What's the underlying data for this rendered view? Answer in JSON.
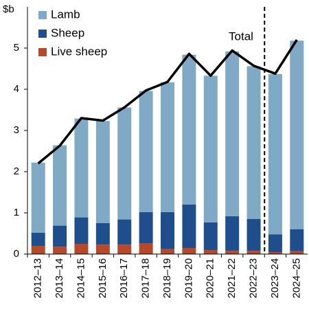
{
  "chart_data": {
    "type": "bar",
    "stacked": true,
    "y_label": "$b",
    "categories": [
      "2012–13",
      "2013–14",
      "2014–15",
      "2015–16",
      "2016–17",
      "2017–18",
      "2018–19",
      "2019–20",
      "2020–21",
      "2021–22",
      "2022–23",
      "2023–24",
      "2024–25"
    ],
    "series": [
      {
        "name": "Live sheep",
        "color": "#b5492a",
        "values": [
          0.2,
          0.18,
          0.25,
          0.23,
          0.23,
          0.26,
          0.12,
          0.15,
          0.1,
          0.08,
          0.08,
          0.05,
          0.07
        ]
      },
      {
        "name": "Sheep",
        "color": "#1f4e8c",
        "values": [
          0.32,
          0.51,
          0.64,
          0.52,
          0.61,
          0.76,
          0.9,
          1.05,
          0.67,
          0.84,
          0.77,
          0.43,
          0.53
        ]
      },
      {
        "name": "Lamb",
        "color": "#7fa9c4",
        "values": [
          1.7,
          1.95,
          2.4,
          2.48,
          2.72,
          2.94,
          3.15,
          3.64,
          3.56,
          4.0,
          3.71,
          3.89,
          4.58
        ]
      }
    ],
    "line_series": {
      "name": "Total",
      "color": "#000000",
      "values": [
        2.2,
        2.63,
        3.3,
        3.24,
        3.56,
        3.97,
        4.18,
        4.86,
        4.33,
        4.94,
        4.57,
        4.38,
        5.2
      ]
    },
    "forecast_from": "2023–24",
    "ylim": [
      0,
      6
    ],
    "yticks": [
      0,
      1,
      2,
      3,
      4,
      5
    ]
  }
}
